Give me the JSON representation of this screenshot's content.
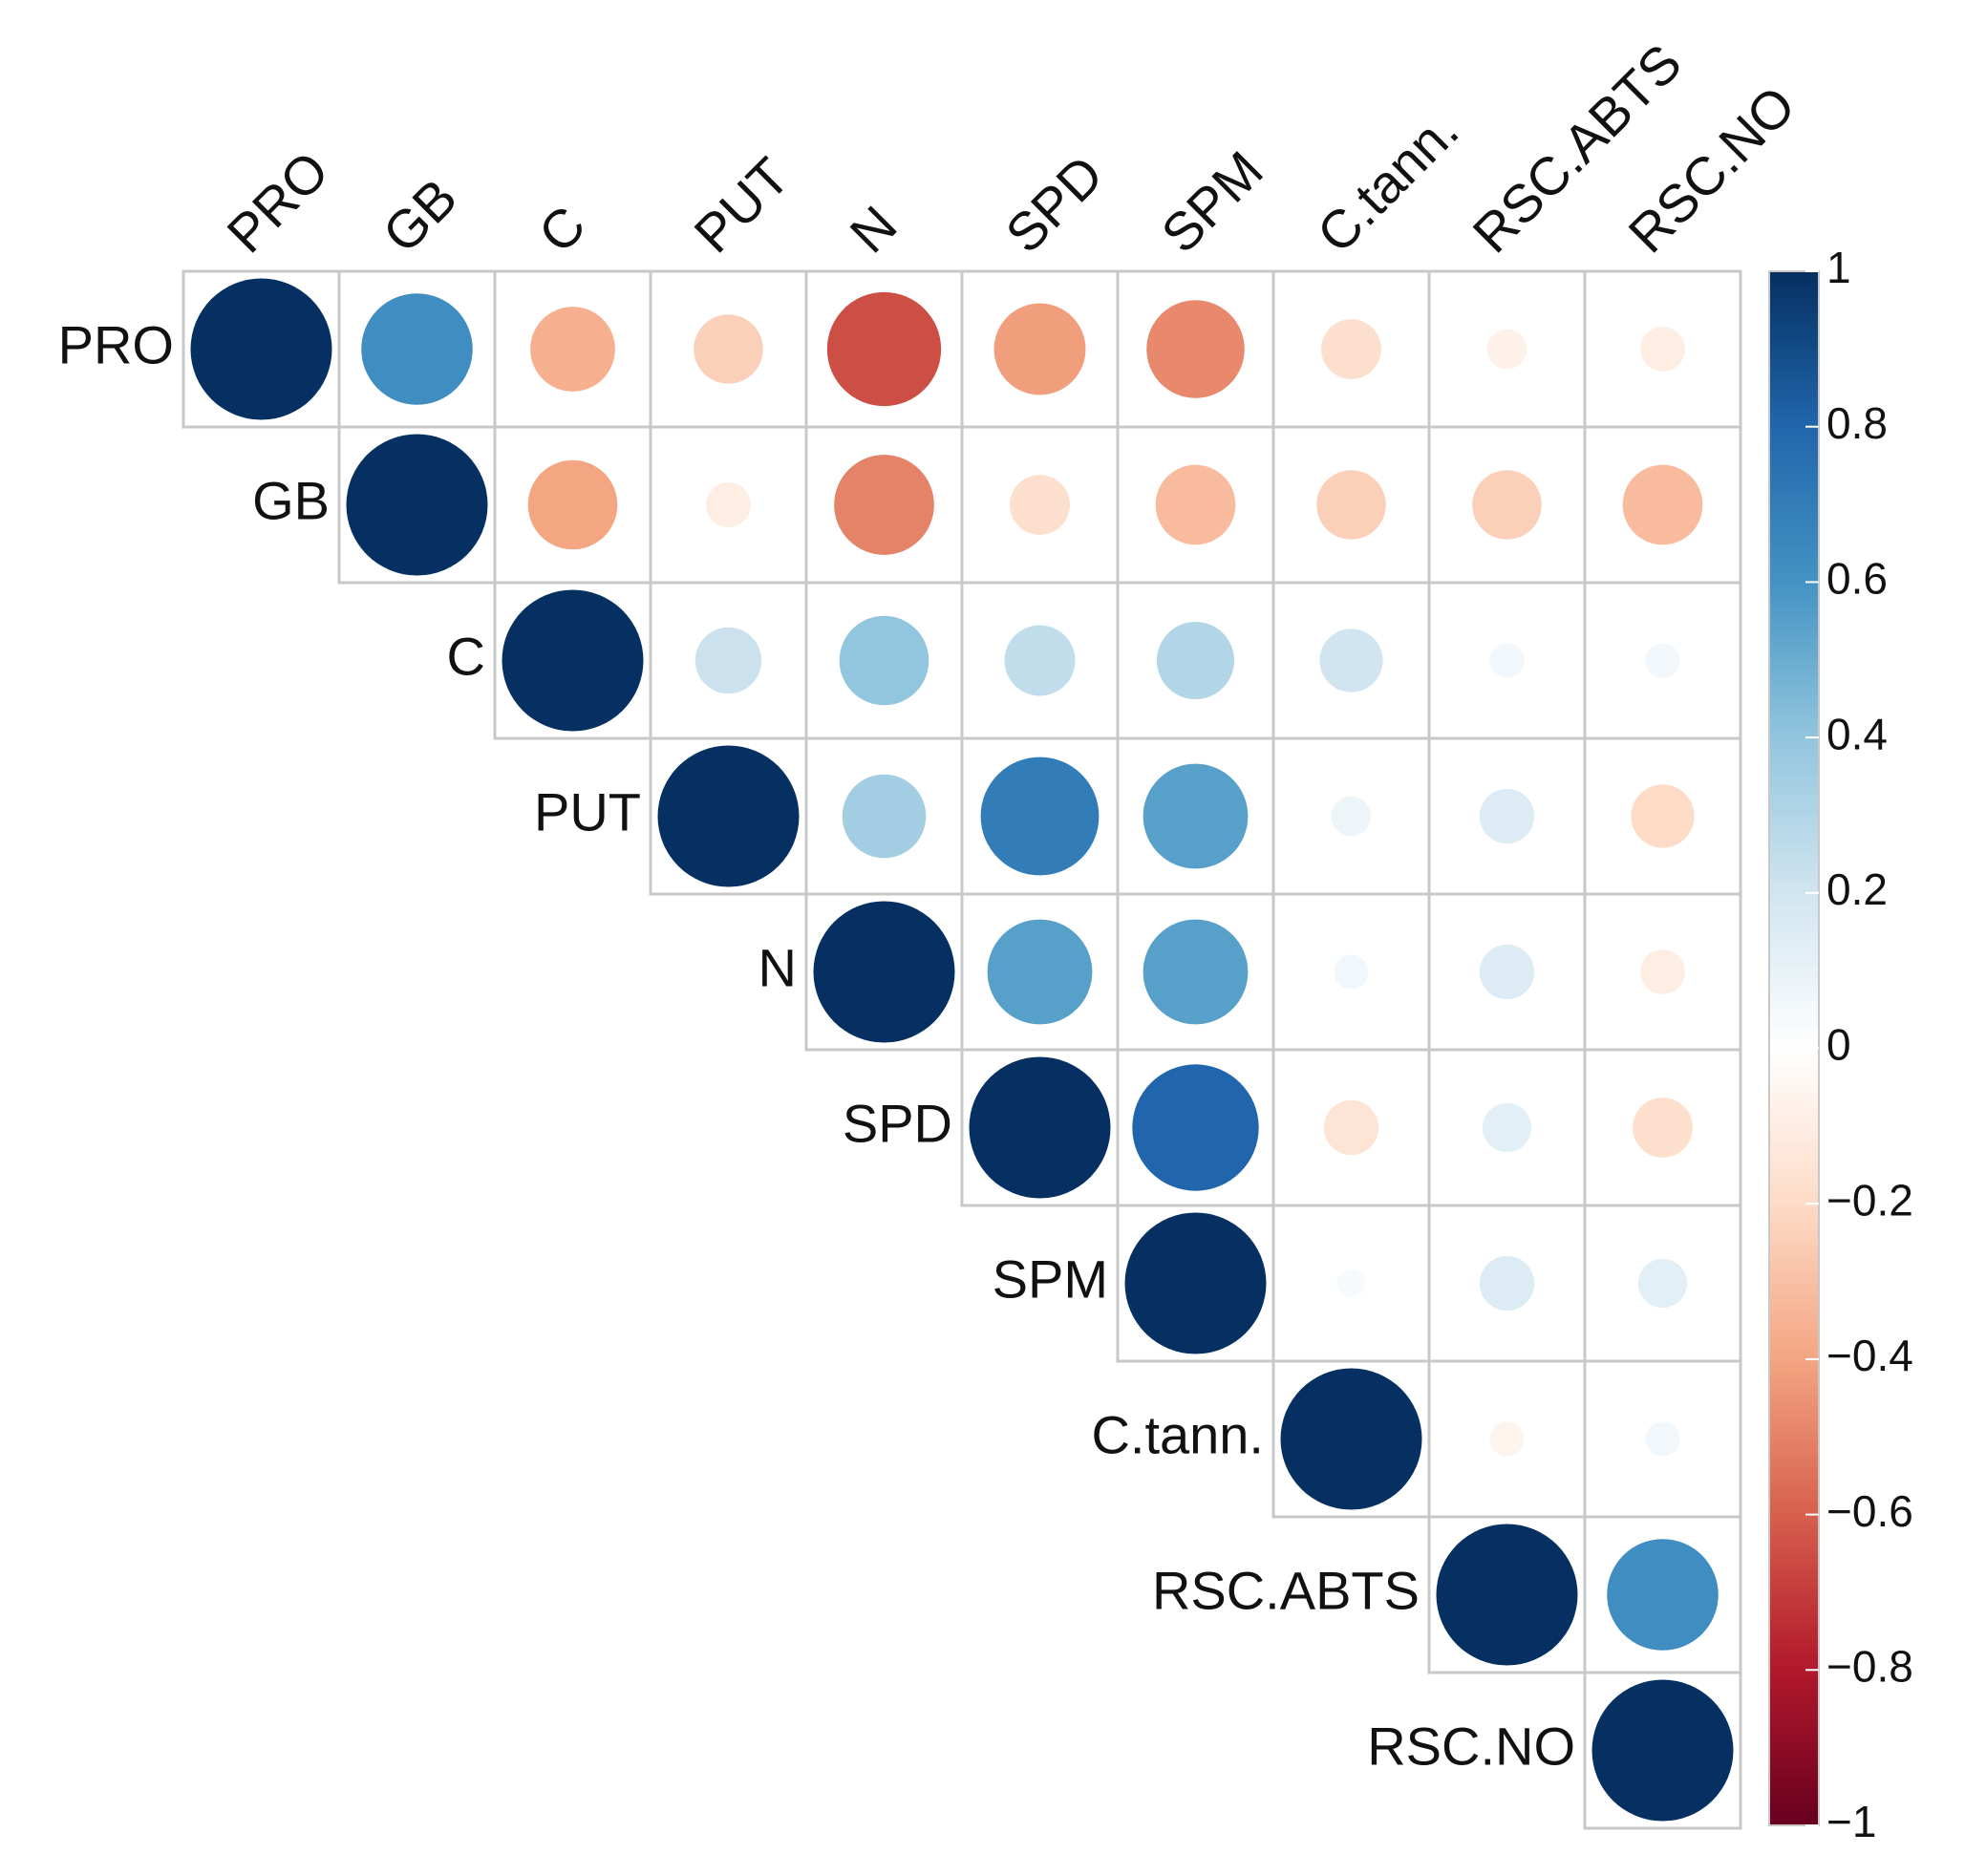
{
  "chart_data": {
    "type": "heatmap",
    "subtype": "correlation-matrix-upper-circles",
    "variables": [
      "PRO",
      "GB",
      "C",
      "PUT",
      "N",
      "SPD",
      "SPM",
      "C.tann.",
      "RSC.ABTS",
      "RSC.NO"
    ],
    "matrix_upper": [
      [
        1,
        0.62,
        -0.36,
        -0.24,
        -0.65,
        -0.42,
        -0.48,
        -0.18,
        -0.08,
        -0.1
      ],
      [
        1,
        -0.4,
        -0.1,
        -0.5,
        -0.18,
        -0.32,
        -0.24,
        -0.24,
        -0.32
      ],
      [
        1,
        0.22,
        0.4,
        0.25,
        0.3,
        0.2,
        0.06,
        0.06
      ],
      [
        1,
        0.35,
        0.7,
        0.55,
        0.08,
        0.15,
        -0.2
      ],
      [
        1,
        0.55,
        0.55,
        0.06,
        0.15,
        -0.1
      ],
      [
        1,
        0.8,
        -0.15,
        0.12,
        -0.18
      ],
      [
        1,
        0.04,
        0.15,
        0.12
      ],
      [
        1,
        -0.06,
        0.06
      ],
      [
        1,
        0.62
      ],
      [
        1
      ]
    ],
    "colorbar": {
      "min": -1,
      "max": 1,
      "ticks": [
        "1",
        "0.8",
        "0.6",
        "0.4",
        "0.2",
        "0",
        "−0.2",
        "−0.4",
        "−0.6",
        "−0.8",
        "−1"
      ],
      "palette": [
        "#67001f",
        "#b2182b",
        "#d6604d",
        "#f4a582",
        "#fddbc7",
        "#ffffff",
        "#d1e5f0",
        "#92c5de",
        "#4393c3",
        "#2166ac",
        "#053061"
      ]
    },
    "grid_color": "#c8c8c8"
  }
}
